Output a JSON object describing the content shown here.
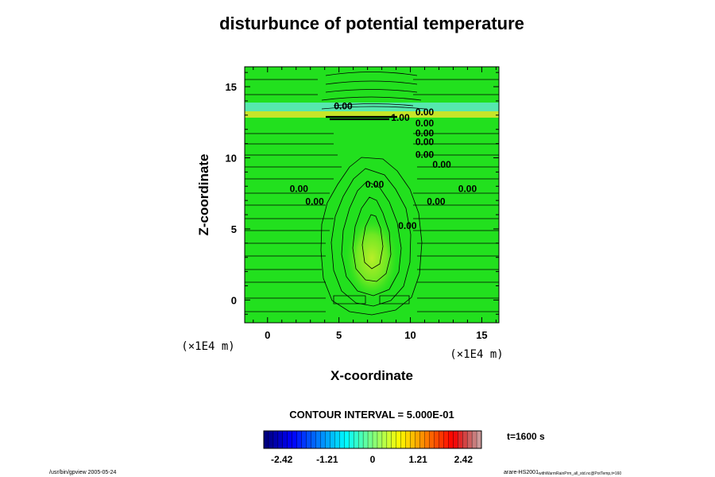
{
  "chart_data": {
    "type": "contour",
    "title": "disturbunce of potential temperature",
    "xlabel": "X-coordinate",
    "ylabel": "Z-coordinate",
    "x_unit": "(×1E4 m)",
    "z_unit": "(×1E4 m)",
    "xlim": [
      -1.6,
      16.2
    ],
    "ylim": [
      -1.6,
      16.4
    ],
    "x_ticks": [
      0,
      5,
      10,
      15
    ],
    "y_ticks": [
      0,
      5,
      10,
      15
    ],
    "contour_labels": [
      {
        "text": "0.00",
        "x": 5.3,
        "z": 13.4
      },
      {
        "text": "0.00",
        "x": 11.0,
        "z": 13.0
      },
      {
        "text": "1.00",
        "x": 9.3,
        "z": 12.6
      },
      {
        "text": "0.00",
        "x": 11.0,
        "z": 12.2
      },
      {
        "text": "0.00",
        "x": 11.0,
        "z": 11.5
      },
      {
        "text": "0.00",
        "x": 11.0,
        "z": 10.9
      },
      {
        "text": "0.00",
        "x": 11.0,
        "z": 10.0
      },
      {
        "text": "0.00",
        "x": 12.2,
        "z": 9.3
      },
      {
        "text": "0.00",
        "x": 2.2,
        "z": 7.6
      },
      {
        "text": "0.00",
        "x": 7.5,
        "z": 7.9
      },
      {
        "text": "0.00",
        "x": 14.0,
        "z": 7.6
      },
      {
        "text": "0.00",
        "x": 3.3,
        "z": 6.7
      },
      {
        "text": "0.00",
        "x": 11.8,
        "z": 6.7
      },
      {
        "text": "0.00",
        "x": 9.8,
        "z": 5.0
      }
    ],
    "contour_interval_label": "CONTOUR INTERVAL = 5.000E-01",
    "colorbar": {
      "min": -2.9,
      "max": 2.9,
      "ticks": [
        -2.42,
        -1.21,
        0,
        1.21,
        2.42
      ],
      "tick_labels": [
        "-2.42",
        "-1.21",
        "0",
        "1.21",
        "2.42"
      ]
    },
    "time_label": "t=1600 s",
    "colors": {
      "field_green": "#22e01e",
      "anomaly_cyan": "#5fe9c8",
      "anomaly_yellow": "#d9e62a",
      "contour_line": "#000000"
    }
  },
  "footer": {
    "left": "/usr/bin/gpview 2005-05-24",
    "right_main": "arare-HS2001",
    "right_sub": "withWarmRainPrm_all_std.nc@PotTemp,t=160"
  }
}
